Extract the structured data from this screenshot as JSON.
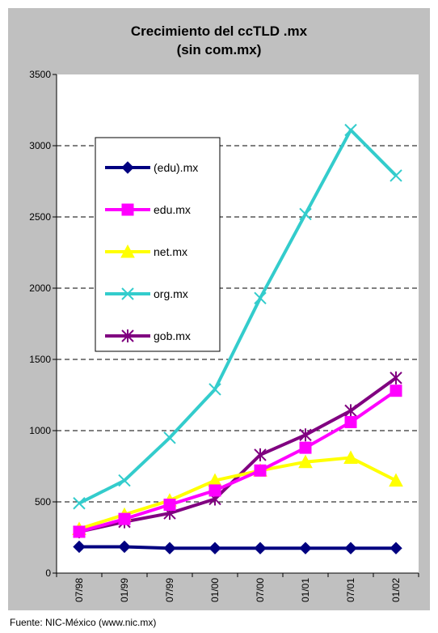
{
  "chart_data": {
    "type": "line",
    "title": "Crecimiento del ccTLD .mx",
    "subtitle": "(sin com.mx)",
    "categories": [
      "07/98",
      "01/99",
      "07/99",
      "01/00",
      "07/00",
      "01/01",
      "07/01",
      "01/02"
    ],
    "ylim": [
      0,
      3500
    ],
    "yticks": [
      0,
      500,
      1000,
      1500,
      2000,
      2500,
      3000,
      3500
    ],
    "grid": "horizontal dashed",
    "legend_position": "upper-left inside plot",
    "series": [
      {
        "name": "(edu).mx",
        "color": "#000080",
        "marker": "diamond",
        "values": [
          185,
          185,
          175,
          175,
          175,
          175,
          175,
          175
        ]
      },
      {
        "name": "edu.mx",
        "color": "#ff00ff",
        "marker": "square",
        "values": [
          290,
          380,
          480,
          580,
          720,
          880,
          1060,
          1280
        ]
      },
      {
        "name": "net.mx",
        "color": "#ffff00",
        "marker": "triangle",
        "values": [
          310,
          410,
          510,
          650,
          720,
          780,
          810,
          650
        ]
      },
      {
        "name": "org.mx",
        "color": "#33cccc",
        "marker": "x",
        "values": [
          490,
          650,
          950,
          1290,
          1930,
          2520,
          3110,
          2790
        ]
      },
      {
        "name": "gob.mx",
        "color": "#800080",
        "marker": "star",
        "values": [
          290,
          360,
          420,
          520,
          830,
          970,
          1140,
          1370
        ]
      }
    ]
  },
  "source": "Fuente: NIC-México (www.nic.mx)"
}
